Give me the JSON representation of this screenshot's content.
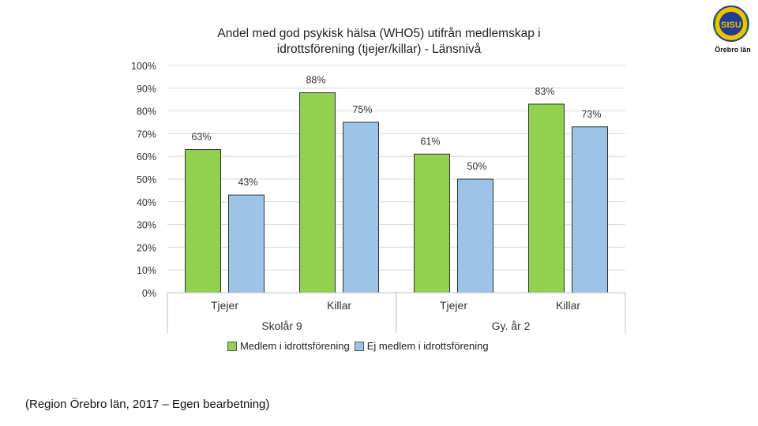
{
  "title_lines": [
    "Andel med god psykisk hälsa (WHO5) utifrån medlemskap i",
    "idrottsförening (tjejer/killar) - Länsnivå"
  ],
  "logo": {
    "text": "Örebro län",
    "emblem_text": "SISU"
  },
  "source": "(Region Örebro län, 2017 – Egen bearbetning)",
  "chart_data": {
    "type": "bar",
    "groups": [
      {
        "label": "Skolår 9",
        "categories": [
          "Tjejer",
          "Killar"
        ]
      },
      {
        "label": "Gy. år 2",
        "categories": [
          "Tjejer",
          "Killar"
        ]
      }
    ],
    "categories": [
      "Tjejer",
      "Killar",
      "Tjejer",
      "Killar"
    ],
    "series": [
      {
        "name": "Medlem i idrottsförening",
        "color": "#92d050",
        "values": [
          63,
          88,
          61,
          83
        ],
        "labels": [
          "63%",
          "88%",
          "61%",
          "83%"
        ]
      },
      {
        "name": "Ej medlem i idrottsförening",
        "color": "#9dc3e6",
        "values": [
          43,
          75,
          50,
          73
        ],
        "labels": [
          "43%",
          "75%",
          "50%",
          "73%"
        ]
      }
    ],
    "ylim": [
      0,
      100
    ],
    "yticks": [
      "0%",
      "10%",
      "20%",
      "30%",
      "40%",
      "50%",
      "60%",
      "70%",
      "80%",
      "90%",
      "100%"
    ],
    "grid": true,
    "legend_position": "bottom"
  }
}
